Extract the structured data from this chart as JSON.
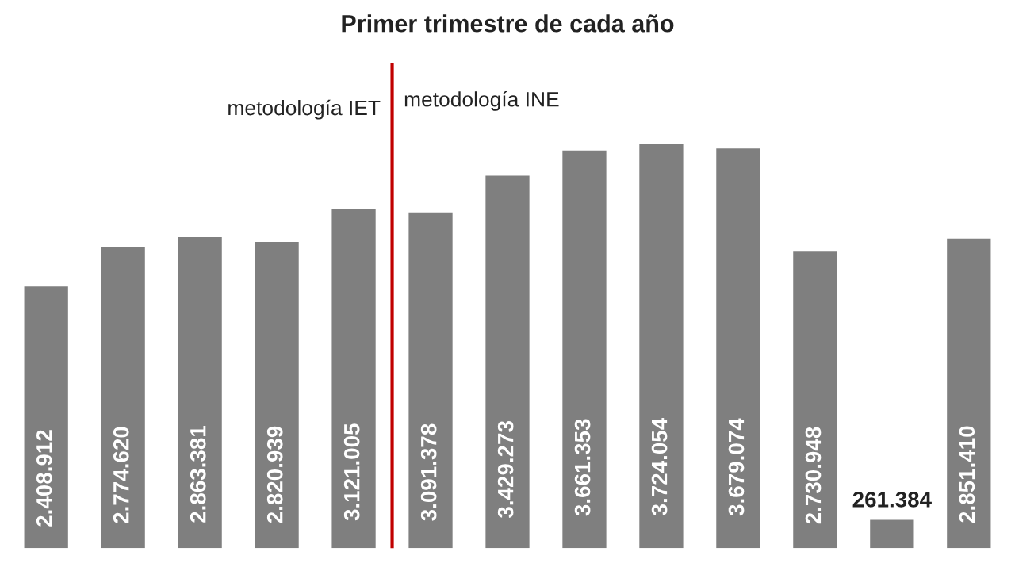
{
  "chart_data": {
    "type": "bar",
    "title": "Primer trimestre de cada año",
    "categories": [
      null,
      null,
      null,
      null,
      null,
      null,
      null,
      null,
      null,
      null,
      null,
      null,
      null
    ],
    "values": [
      2408912,
      2774620,
      2863381,
      2820939,
      3121005,
      3091378,
      3429273,
      3661353,
      3724054,
      3679074,
      2730948,
      261384,
      2851410
    ],
    "value_labels": [
      "2.408.912",
      "2.774.620",
      "2.863.381",
      "2.820.939",
      "3.121.005",
      "3.091.378",
      "3.429.273",
      "3.661.353",
      "3.724.054",
      "3.679.074",
      "2.730.948",
      "261.384",
      "2.851.410"
    ],
    "color": "#7f7f7f",
    "annotations": [
      "metodología IET",
      "metodología INE"
    ],
    "grid": false
  }
}
